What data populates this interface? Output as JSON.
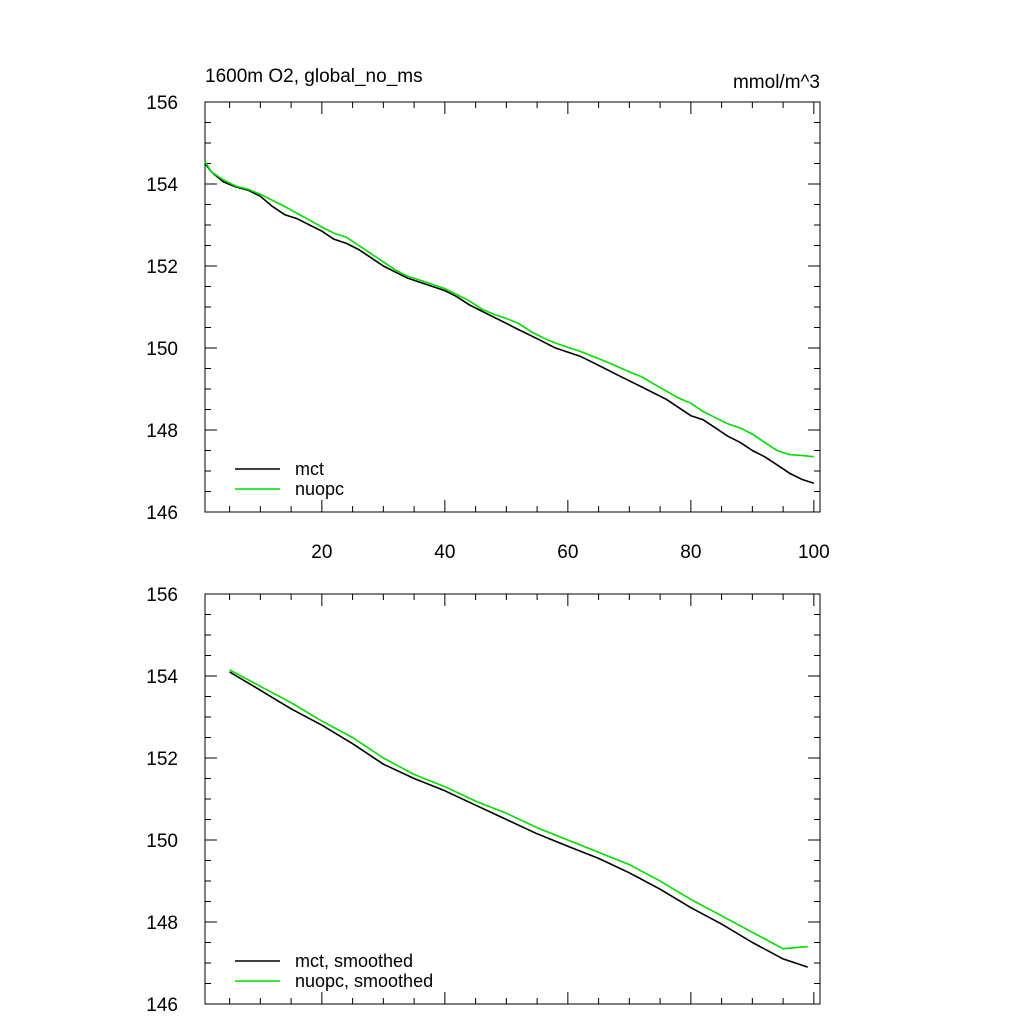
{
  "colors": {
    "mct": "#000000",
    "nuopc": "#00dd00",
    "axis": "#000000",
    "background": "#ffffff"
  },
  "chart_data": [
    {
      "type": "line",
      "title": "1600m O2, global_no_ms",
      "units": "mmol/m^3",
      "xlim": [
        1,
        101
      ],
      "ylim": [
        146,
        156
      ],
      "yticks": [
        146,
        148,
        150,
        152,
        154,
        156
      ],
      "xticks": [
        20,
        40,
        60,
        80,
        100
      ],
      "xtick_labels_shown": true,
      "legend_placement": "bottom-left",
      "grid": false,
      "series": [
        {
          "name": "mct",
          "color": "#000000",
          "points": [
            [
              1,
              154.5
            ],
            [
              2,
              154.3
            ],
            [
              4,
              154.05
            ],
            [
              6,
              153.93
            ],
            [
              8,
              153.85
            ],
            [
              10,
              153.7
            ],
            [
              12,
              153.45
            ],
            [
              14,
              153.25
            ],
            [
              16,
              153.15
            ],
            [
              18,
              153.0
            ],
            [
              20,
              152.85
            ],
            [
              22,
              152.65
            ],
            [
              24,
              152.55
            ],
            [
              26,
              152.4
            ],
            [
              28,
              152.2
            ],
            [
              30,
              152.0
            ],
            [
              32,
              151.85
            ],
            [
              34,
              151.7
            ],
            [
              36,
              151.6
            ],
            [
              38,
              151.5
            ],
            [
              40,
              151.4
            ],
            [
              42,
              151.25
            ],
            [
              44,
              151.05
            ],
            [
              46,
              150.9
            ],
            [
              48,
              150.75
            ],
            [
              50,
              150.6
            ],
            [
              52,
              150.45
            ],
            [
              54,
              150.3
            ],
            [
              56,
              150.15
            ],
            [
              58,
              150.0
            ],
            [
              60,
              149.9
            ],
            [
              62,
              149.8
            ],
            [
              64,
              149.65
            ],
            [
              66,
              149.5
            ],
            [
              68,
              149.35
            ],
            [
              70,
              149.2
            ],
            [
              72,
              149.05
            ],
            [
              74,
              148.9
            ],
            [
              76,
              148.75
            ],
            [
              78,
              148.55
            ],
            [
              80,
              148.35
            ],
            [
              82,
              148.25
            ],
            [
              84,
              148.05
            ],
            [
              86,
              147.85
            ],
            [
              88,
              147.7
            ],
            [
              90,
              147.5
            ],
            [
              92,
              147.35
            ],
            [
              94,
              147.15
            ],
            [
              96,
              146.95
            ],
            [
              98,
              146.8
            ],
            [
              100,
              146.7
            ]
          ]
        },
        {
          "name": "nuopc",
          "color": "#00dd00",
          "points": [
            [
              1,
              154.55
            ],
            [
              2,
              154.3
            ],
            [
              4,
              154.1
            ],
            [
              6,
              153.95
            ],
            [
              8,
              153.87
            ],
            [
              10,
              153.75
            ],
            [
              12,
              153.6
            ],
            [
              14,
              153.45
            ],
            [
              16,
              153.28
            ],
            [
              18,
              153.12
            ],
            [
              20,
              152.95
            ],
            [
              22,
              152.8
            ],
            [
              24,
              152.7
            ],
            [
              26,
              152.5
            ],
            [
              28,
              152.3
            ],
            [
              30,
              152.1
            ],
            [
              32,
              151.9
            ],
            [
              34,
              151.75
            ],
            [
              36,
              151.65
            ],
            [
              38,
              151.55
            ],
            [
              40,
              151.45
            ],
            [
              42,
              151.3
            ],
            [
              44,
              151.15
            ],
            [
              46,
              150.95
            ],
            [
              48,
              150.82
            ],
            [
              50,
              150.72
            ],
            [
              52,
              150.6
            ],
            [
              54,
              150.4
            ],
            [
              56,
              150.25
            ],
            [
              58,
              150.12
            ],
            [
              60,
              150.02
            ],
            [
              62,
              149.92
            ],
            [
              64,
              149.8
            ],
            [
              66,
              149.68
            ],
            [
              68,
              149.55
            ],
            [
              70,
              149.42
            ],
            [
              72,
              149.3
            ],
            [
              74,
              149.12
            ],
            [
              76,
              148.95
            ],
            [
              78,
              148.78
            ],
            [
              80,
              148.65
            ],
            [
              82,
              148.45
            ],
            [
              84,
              148.3
            ],
            [
              86,
              148.15
            ],
            [
              88,
              148.05
            ],
            [
              90,
              147.9
            ],
            [
              92,
              147.7
            ],
            [
              94,
              147.5
            ],
            [
              96,
              147.4
            ],
            [
              98,
              147.38
            ],
            [
              100,
              147.35
            ]
          ]
        }
      ]
    },
    {
      "type": "line",
      "title": "",
      "units": "",
      "xlim": [
        1,
        101
      ],
      "ylim": [
        146,
        156
      ],
      "yticks": [
        146,
        148,
        150,
        152,
        154,
        156
      ],
      "xticks": [
        20,
        40,
        60,
        80,
        100
      ],
      "xtick_labels_shown": false,
      "legend_placement": "bottom-left",
      "grid": false,
      "series": [
        {
          "name": "mct, smoothed",
          "color": "#000000",
          "points": [
            [
              5,
              154.1
            ],
            [
              10,
              153.65
            ],
            [
              15,
              153.2
            ],
            [
              20,
              152.8
            ],
            [
              25,
              152.35
            ],
            [
              30,
              151.85
            ],
            [
              35,
              151.5
            ],
            [
              40,
              151.2
            ],
            [
              45,
              150.85
            ],
            [
              50,
              150.5
            ],
            [
              55,
              150.15
            ],
            [
              60,
              149.85
            ],
            [
              65,
              149.55
            ],
            [
              70,
              149.2
            ],
            [
              75,
              148.8
            ],
            [
              80,
              148.35
            ],
            [
              85,
              147.95
            ],
            [
              90,
              147.5
            ],
            [
              95,
              147.1
            ],
            [
              99,
              146.9
            ]
          ]
        },
        {
          "name": "nuopc, smoothed",
          "color": "#00dd00",
          "points": [
            [
              5,
              154.15
            ],
            [
              10,
              153.75
            ],
            [
              15,
              153.35
            ],
            [
              20,
              152.9
            ],
            [
              25,
              152.5
            ],
            [
              30,
              152.0
            ],
            [
              35,
              151.6
            ],
            [
              40,
              151.3
            ],
            [
              45,
              150.95
            ],
            [
              50,
              150.65
            ],
            [
              55,
              150.3
            ],
            [
              60,
              150.0
            ],
            [
              65,
              149.7
            ],
            [
              70,
              149.4
            ],
            [
              75,
              149.0
            ],
            [
              80,
              148.55
            ],
            [
              85,
              148.15
            ],
            [
              90,
              147.75
            ],
            [
              95,
              147.35
            ],
            [
              99,
              147.4
            ]
          ]
        }
      ]
    }
  ]
}
